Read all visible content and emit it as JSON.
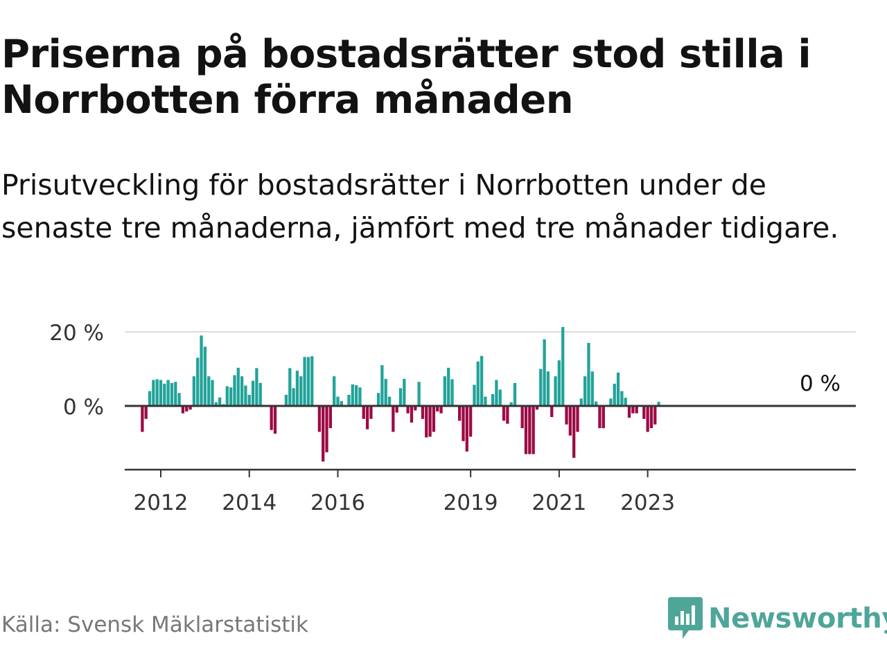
{
  "header": {
    "title": "Priserna på bostadsrätter stod stilla i Norrbotten förra månaden",
    "subtitle": "Prisutveckling för bostadsrätter i Norrbotten under de senaste tre månaderna, jämfört med tre månader tidigare."
  },
  "footer": {
    "source": "Källa: Svensk Mäklarstatistik",
    "brand": "Newsworthy"
  },
  "colors": {
    "positive": "#22a39a",
    "negative": "#9c0b45",
    "axis": "#333333",
    "grid": "#dddddd",
    "brand": "#4ea699"
  },
  "chart_data": {
    "type": "bar",
    "title": "Priserna på bostadsrätter stod stilla i Norrbotten förra månaden",
    "subtitle": "Prisutveckling för bostadsrätter i Norrbotten under de senaste tre månaderna, jämfört med tre månader tidigare.",
    "unit": "%",
    "ylim": [
      -17,
      20
    ],
    "yticks": [
      {
        "value": 20,
        "label": "20 %"
      },
      {
        "value": 0,
        "label": "0 %"
      }
    ],
    "xticks": [
      "2012",
      "2014",
      "2016",
      "2019",
      "2021",
      "2023"
    ],
    "x_start": "2011-08",
    "grid": true,
    "annotation": {
      "label": "0 %",
      "value": 0
    },
    "values": [
      -7,
      -3.5,
      4,
      7,
      7.2,
      7,
      6,
      7,
      6.2,
      6.5,
      3.5,
      -2,
      -1.5,
      -1,
      8,
      13,
      19,
      16,
      8,
      7,
      1,
      2.3,
      0.5,
      5.3,
      5,
      8.3,
      10.3,
      8,
      5.5,
      3,
      6.8,
      10.2,
      6.2,
      0,
      0,
      -6.5,
      -7.5,
      0,
      0,
      3,
      10.2,
      4.8,
      9.5,
      8,
      13.2,
      13.2,
      13.4,
      0,
      -7,
      -15,
      -12.5,
      -6,
      8,
      2.5,
      1.3,
      0,
      3,
      5.8,
      5.6,
      5,
      -3.5,
      -6.3,
      -3.5,
      0,
      3.5,
      11,
      7.3,
      2.5,
      -7,
      -1.8,
      4.8,
      7.3,
      -2,
      -4.5,
      -1.2,
      6.5,
      -3.5,
      -8.5,
      -8.3,
      -7,
      -1.5,
      -2,
      8,
      10.3,
      7.2,
      0,
      -4,
      -9.5,
      -12.3,
      -8.3,
      5.7,
      12,
      13.5,
      2.5,
      0,
      3.2,
      7,
      4.4,
      -4,
      -4.8,
      1,
      6.2,
      0,
      -6,
      -13,
      -13,
      -13,
      -1,
      10,
      18,
      9.3,
      -3,
      8,
      12.3,
      21.3,
      -5,
      -8,
      -14,
      -7,
      2,
      8,
      17,
      9.3,
      1.2,
      -6,
      -6,
      0,
      2,
      6,
      9,
      4,
      2.2,
      -3.2,
      -2,
      -2,
      0,
      -3.5,
      -7,
      -6,
      -5,
      1.1
    ]
  }
}
